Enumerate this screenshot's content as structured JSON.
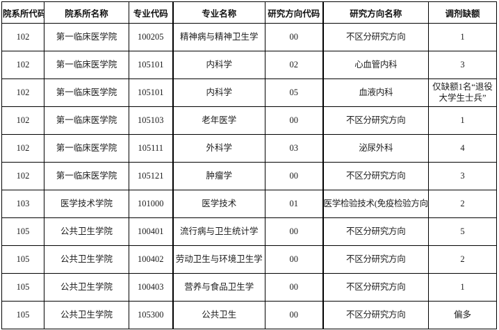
{
  "colors": {
    "border": "#000000",
    "text": "#1c1c1c",
    "background": "#ffffff"
  },
  "table": {
    "headers": [
      "院系所代码",
      "院系所名称",
      "专业代码",
      "专业名称",
      "研究方向代码",
      "研究方向名称",
      "调剂缺额"
    ],
    "rows": [
      [
        "102",
        "第一临床医学院",
        "100205",
        "精神病与精神卫生学",
        "00",
        "不区分研究方向",
        "1"
      ],
      [
        "102",
        "第一临床医学院",
        "105101",
        "内科学",
        "02",
        "心血管内科",
        "3"
      ],
      [
        "102",
        "第一临床医学院",
        "105101",
        "内科学",
        "05",
        "血液内科",
        "仅缺额1名“退役大学生士兵”"
      ],
      [
        "102",
        "第一临床医学院",
        "105103",
        "老年医学",
        "00",
        "不区分研究方向",
        "1"
      ],
      [
        "102",
        "第一临床医学院",
        "105111",
        "外科学",
        "03",
        "泌尿外科",
        "4"
      ],
      [
        "102",
        "第一临床医学院",
        "105121",
        "肿瘤学",
        "00",
        "不区分研究方向",
        "3"
      ],
      [
        "103",
        "医学技术学院",
        "101000",
        "医学技术",
        "01",
        "医学检验技术(免疫检验方向)",
        "2"
      ],
      [
        "105",
        "公共卫生学院",
        "100401",
        "流行病与卫生统计学",
        "00",
        "不区分研究方向",
        "5"
      ],
      [
        "105",
        "公共卫生学院",
        "100402",
        "劳动卫生与环境卫生学",
        "00",
        "不区分研究方向",
        "2"
      ],
      [
        "105",
        "公共卫生学院",
        "100403",
        "营养与食品卫生学",
        "00",
        "不区分研究方向",
        "1"
      ],
      [
        "105",
        "公共卫生学院",
        "105300",
        "公共卫生",
        "00",
        "不区分研究方向",
        "偏多"
      ]
    ]
  }
}
